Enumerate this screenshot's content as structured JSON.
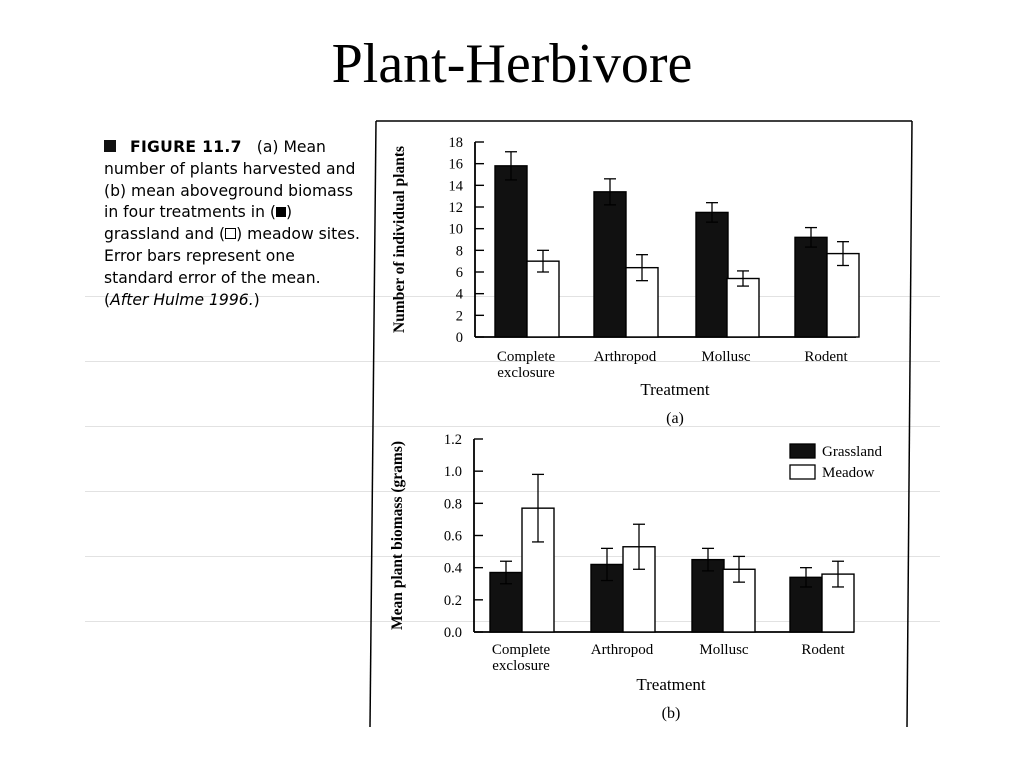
{
  "slide": {
    "title": "Plant-Herbivore"
  },
  "caption": {
    "figure_label": "FIGURE 11.7",
    "part_a_tag": "(a)",
    "line_a": "Mean number of plants harvested and",
    "part_b_tag": "(b)",
    "line_b": "mean aboveground biomass in four treatments in (",
    "grassland_text": ") grassland and (",
    "meadow_text": ") meadow sites. Error bars represent one standard error of the mean. (",
    "source": "After Hulme 1996.",
    "close": ")"
  },
  "chart_data": [
    {
      "type": "bar",
      "panel_label": "(a)",
      "categories": [
        "Complete exclosure",
        "Arthropod",
        "Mollusc",
        "Rodent"
      ],
      "category_lines": [
        [
          "Complete",
          "exclosure"
        ],
        [
          "Arthropod"
        ],
        [
          "Mollusc"
        ],
        [
          "Rodent"
        ]
      ],
      "series": [
        {
          "name": "Grassland",
          "values": [
            15.8,
            13.4,
            11.5,
            9.2
          ],
          "errors": [
            1.3,
            1.2,
            0.9,
            0.9
          ],
          "color": "#111111"
        },
        {
          "name": "Meadow",
          "values": [
            7.0,
            6.4,
            5.4,
            7.7
          ],
          "errors": [
            1.0,
            1.2,
            0.7,
            1.1
          ],
          "color": "#ffffff"
        }
      ],
      "xlabel": "Treatment",
      "ylabel": "Number of individual plants",
      "ylim": [
        0,
        18
      ],
      "yticks": [
        "0",
        "2",
        "4",
        "6",
        "8",
        "10",
        "12",
        "14",
        "16",
        "18"
      ],
      "legend": false
    },
    {
      "type": "bar",
      "panel_label": "(b)",
      "categories": [
        "Complete exclosure",
        "Arthropod",
        "Mollusc",
        "Rodent"
      ],
      "category_lines": [
        [
          "Complete",
          "exclosure"
        ],
        [
          "Arthropod"
        ],
        [
          "Mollusc"
        ],
        [
          "Rodent"
        ]
      ],
      "series": [
        {
          "name": "Grassland",
          "values": [
            0.37,
            0.42,
            0.45,
            0.34
          ],
          "errors": [
            0.07,
            0.1,
            0.07,
            0.06
          ],
          "color": "#111111"
        },
        {
          "name": "Meadow",
          "values": [
            0.77,
            0.53,
            0.39,
            0.36
          ],
          "errors": [
            0.21,
            0.14,
            0.08,
            0.08
          ],
          "color": "#ffffff"
        }
      ],
      "xlabel": "Treatment",
      "ylabel": "Mean plant biomass (grams)",
      "ylim": [
        0,
        1.2
      ],
      "yticks": [
        "0.0",
        "0.2",
        "0.4",
        "0.6",
        "0.8",
        "1.0",
        "1.2"
      ],
      "legend": true,
      "legend_position": "top-right"
    }
  ]
}
